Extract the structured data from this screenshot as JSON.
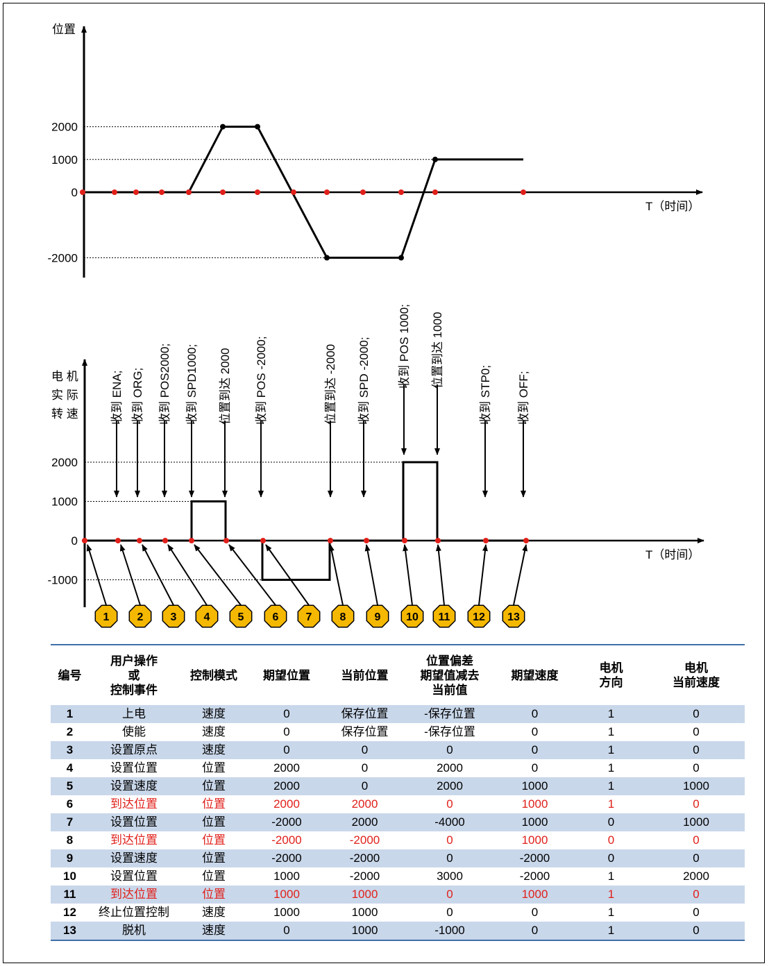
{
  "top_chart": {
    "ylabel": "位置",
    "xlabel": "T（时间）",
    "ticks": [
      "2000",
      "1000",
      "0",
      "-2000"
    ],
    "ylim": [
      -2000,
      2000
    ],
    "series": [
      {
        "points": [
          [
            0,
            0
          ],
          [
            1,
            0
          ],
          [
            2,
            0
          ],
          [
            3,
            0
          ],
          [
            4,
            0
          ],
          [
            5,
            2000
          ],
          [
            6,
            2000
          ],
          [
            8,
            -2000
          ],
          [
            9,
            -2000
          ],
          [
            10,
            1000
          ],
          [
            11,
            1000
          ],
          [
            12,
            1000
          ]
        ]
      }
    ],
    "event_times": [
      0,
      1,
      2,
      3,
      4,
      5,
      6,
      7,
      8,
      9,
      10,
      11,
      12
    ]
  },
  "bottom_chart": {
    "ylabel_lines": [
      "电 机",
      "实 际",
      "转 速"
    ],
    "xlabel": "T（时间）",
    "ticks": [
      "2000",
      "1000",
      "0",
      "-1000"
    ],
    "ylim": [
      -1000,
      2000
    ],
    "commands": [
      "收到 ENA;",
      "收到 ORG;",
      "收到 POS2000;",
      "收到 SPD1000;",
      "位置到达 2000",
      "收到 POS -2000;",
      "位置到达 -2000",
      "收到 SPD -2000;",
      "收到 POS 1000;",
      "位置到达 1000",
      "收到  STP0;",
      "收到  OFF;"
    ],
    "markers": [
      "1",
      "2",
      "3",
      "4",
      "5",
      "6",
      "7",
      "8",
      "9",
      "10",
      "11",
      "12",
      "13"
    ]
  },
  "colors": {
    "highlight_text": "#e0201a",
    "row_fill": "#c9d7ea",
    "rule": "#3f6fa8",
    "marker_fill": "#f5b800",
    "point": "#e0201a"
  },
  "table": {
    "headers": [
      [
        "编号"
      ],
      [
        "用户操作",
        "或",
        "控制事件"
      ],
      [
        "控制模式"
      ],
      [
        "期望位置"
      ],
      [
        "当前位置"
      ],
      [
        "位置偏差",
        "期望值减去",
        "当前值"
      ],
      [
        "期望速度"
      ],
      [
        "电机",
        "方向"
      ],
      [
        "电机",
        "当前速度"
      ]
    ],
    "rows": [
      {
        "cells": [
          "1",
          "上电",
          "速度",
          "0",
          "保存位置",
          "-保存位置",
          "0",
          "1",
          "0"
        ],
        "highlight": false
      },
      {
        "cells": [
          "2",
          "使能",
          "速度",
          "0",
          "保存位置",
          "-保存位置",
          "0",
          "1",
          "0"
        ],
        "highlight": false
      },
      {
        "cells": [
          "3",
          "设置原点",
          "速度",
          "0",
          "0",
          "0",
          "0",
          "1",
          "0"
        ],
        "highlight": false
      },
      {
        "cells": [
          "4",
          "设置位置",
          "位置",
          "2000",
          "0",
          "2000",
          "0",
          "1",
          "0"
        ],
        "highlight": false
      },
      {
        "cells": [
          "5",
          "设置速度",
          "位置",
          "2000",
          "0",
          "2000",
          "1000",
          "1",
          "1000"
        ],
        "highlight": false
      },
      {
        "cells": [
          "6",
          "到达位置",
          "位置",
          "2000",
          "2000",
          "0",
          "1000",
          "1",
          "0"
        ],
        "highlight": true
      },
      {
        "cells": [
          "7",
          "设置位置",
          "位置",
          "-2000",
          "2000",
          "-4000",
          "1000",
          "0",
          "1000"
        ],
        "highlight": false
      },
      {
        "cells": [
          "8",
          "到达位置",
          "位置",
          "-2000",
          "-2000",
          "0",
          "1000",
          "0",
          "0"
        ],
        "highlight": true
      },
      {
        "cells": [
          "9",
          "设置速度",
          "位置",
          "-2000",
          "-2000",
          "0",
          "-2000",
          "0",
          "0"
        ],
        "highlight": false
      },
      {
        "cells": [
          "10",
          "设置位置",
          "位置",
          "1000",
          "-2000",
          "3000",
          "-2000",
          "1",
          "2000"
        ],
        "highlight": false
      },
      {
        "cells": [
          "11",
          "到达位置",
          "位置",
          "1000",
          "1000",
          "0",
          "1000",
          "1",
          "0"
        ],
        "highlight": true
      },
      {
        "cells": [
          "12",
          "终止位置控制",
          "速度",
          "1000",
          "1000",
          "0",
          "0",
          "1",
          "0"
        ],
        "highlight": false
      },
      {
        "cells": [
          "13",
          "脱机",
          "速度",
          "0",
          "1000",
          "-1000",
          "0",
          "1",
          "0"
        ],
        "highlight": false
      }
    ]
  }
}
